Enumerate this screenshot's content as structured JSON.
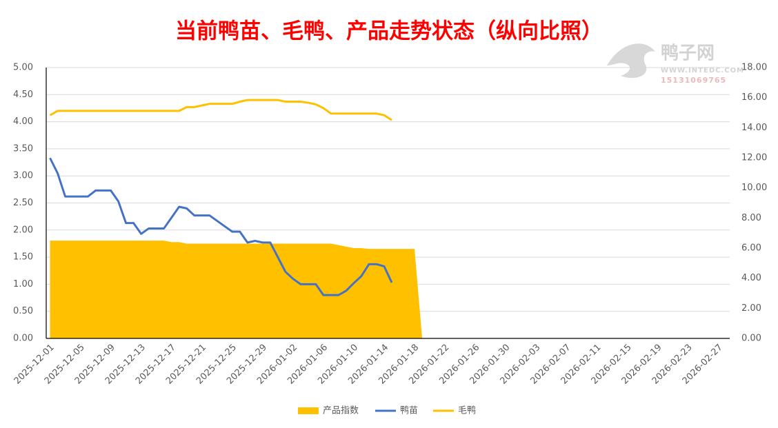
{
  "chart_data": {
    "type": "combo",
    "title": "当前鸭苗、毛鸭、产品走势状态（纵向比照）",
    "watermark": {
      "name": "鸭子网",
      "site": "WWW.INTEDC.COM",
      "phone": "15131069765"
    },
    "categories": [
      "2025-12-01",
      null,
      null,
      null,
      "2025-12-05",
      null,
      null,
      null,
      "2025-12-09",
      null,
      null,
      null,
      "2025-12-13",
      null,
      null,
      null,
      "2025-12-17",
      null,
      null,
      null,
      "2025-12-21",
      null,
      null,
      null,
      "2025-12-25",
      null,
      null,
      null,
      "2025-12-29",
      null,
      null,
      null,
      "2026-01-02",
      null,
      null,
      null,
      "2026-01-06",
      null,
      null,
      null,
      "2026-01-10",
      null,
      null,
      null,
      "2026-01-14",
      null,
      null,
      null,
      "2026-01-18",
      null,
      null,
      null,
      "2026-01-22",
      null,
      null,
      null,
      "2026-01-26",
      null,
      null,
      null,
      "2026-01-30",
      null,
      null,
      null,
      "2026-02-03",
      null,
      null,
      null,
      "2026-02-07",
      null,
      null,
      null,
      "2026-02-11",
      null,
      null,
      null,
      "2026-02-15",
      null,
      null,
      null,
      "2026-02-19",
      null,
      null,
      null,
      "2026-02-23",
      null,
      null,
      null,
      "2026-02-27",
      null
    ],
    "series": [
      {
        "name": "产品指数",
        "kind": "area",
        "axis": "y2",
        "color": "#ffc000",
        "values": [
          6.5,
          6.5,
          6.5,
          6.5,
          6.5,
          6.5,
          6.5,
          6.5,
          6.5,
          6.5,
          6.5,
          6.5,
          6.5,
          6.5,
          6.5,
          6.5,
          6.4,
          6.4,
          6.3,
          6.3,
          6.3,
          6.3,
          6.3,
          6.3,
          6.3,
          6.3,
          6.3,
          6.3,
          6.3,
          6.3,
          6.3,
          6.3,
          6.3,
          6.3,
          6.3,
          6.3,
          6.3,
          6.3,
          6.2,
          6.1,
          6.0,
          6.0,
          5.95,
          5.95,
          5.95,
          5.95,
          5.95,
          5.95,
          5.95,
          0,
          null,
          null,
          null,
          null,
          null,
          null,
          null,
          null,
          null,
          null,
          null,
          null,
          null,
          null,
          null,
          null,
          null,
          null,
          null,
          null,
          null,
          null,
          null,
          null,
          null,
          null,
          null,
          null,
          null,
          null,
          null,
          null,
          null,
          null,
          null,
          null,
          null,
          null,
          null,
          null
        ]
      },
      {
        "name": "鸭苗",
        "kind": "line",
        "color": "#4472c4",
        "values": [
          3.33,
          3.05,
          2.62,
          2.62,
          2.62,
          2.62,
          2.73,
          2.73,
          2.73,
          2.53,
          2.13,
          2.13,
          1.93,
          2.03,
          2.03,
          2.03,
          2.23,
          2.43,
          2.4,
          2.27,
          2.27,
          2.27,
          2.17,
          2.07,
          1.97,
          1.97,
          1.77,
          1.8,
          1.77,
          1.77,
          1.5,
          1.23,
          1.1,
          1.0,
          1.0,
          1.0,
          0.8,
          0.8,
          0.8,
          0.88,
          1.02,
          1.15,
          1.37,
          1.37,
          1.33,
          1.03,
          null,
          null,
          null,
          null,
          null,
          null,
          null,
          null,
          null,
          null,
          null,
          null,
          null,
          null,
          null,
          null,
          null,
          null,
          null,
          null,
          null,
          null,
          null,
          null,
          null,
          null,
          null,
          null,
          null,
          null,
          null,
          null,
          null,
          null,
          null,
          null,
          null,
          null,
          null,
          null,
          null,
          null,
          null,
          null
        ]
      },
      {
        "name": "毛鸭",
        "kind": "line",
        "color": "#ffc000",
        "values": [
          4.12,
          4.2,
          4.2,
          4.2,
          4.2,
          4.2,
          4.2,
          4.2,
          4.2,
          4.2,
          4.2,
          4.2,
          4.2,
          4.2,
          4.2,
          4.2,
          4.2,
          4.2,
          4.27,
          4.27,
          4.3,
          4.33,
          4.33,
          4.33,
          4.33,
          4.37,
          4.4,
          4.4,
          4.4,
          4.4,
          4.4,
          4.37,
          4.37,
          4.37,
          4.35,
          4.32,
          4.25,
          4.15,
          4.15,
          4.15,
          4.15,
          4.15,
          4.15,
          4.15,
          4.12,
          4.03,
          null,
          null,
          null,
          null,
          null,
          null,
          null,
          null,
          null,
          null,
          null,
          null,
          null,
          null,
          null,
          null,
          null,
          null,
          null,
          null,
          null,
          null,
          null,
          null,
          null,
          null,
          null,
          null,
          null,
          null,
          null,
          null,
          null,
          null,
          null,
          null,
          null,
          null,
          null,
          null,
          null,
          null,
          null,
          null
        ]
      }
    ],
    "ylim": [
      0,
      5
    ],
    "yticks": [
      {
        "value": 0,
        "label": "0.00"
      },
      {
        "value": 0.5,
        "label": "0.50"
      },
      {
        "value": 1,
        "label": "1.00"
      },
      {
        "value": 1.5,
        "label": "1.50"
      },
      {
        "value": 2,
        "label": "2.00"
      },
      {
        "value": 2.5,
        "label": "2.50"
      },
      {
        "value": 3,
        "label": "3.00"
      },
      {
        "value": 3.5,
        "label": "3.50"
      },
      {
        "value": 4,
        "label": "4.00"
      },
      {
        "value": 4.5,
        "label": "4.50"
      },
      {
        "value": 5,
        "label": "5.00"
      }
    ],
    "y2lim": [
      0,
      18
    ],
    "y2ticks": [
      {
        "value": 0,
        "label": "0.00"
      },
      {
        "value": 2,
        "label": "2.00"
      },
      {
        "value": 4,
        "label": "4.00"
      },
      {
        "value": 6,
        "label": "6.00"
      },
      {
        "value": 8,
        "label": "8.00"
      },
      {
        "value": 10,
        "label": "10.00"
      },
      {
        "value": 12,
        "label": "12.00"
      },
      {
        "value": 14,
        "label": "14.00"
      },
      {
        "value": 16,
        "label": "16.00"
      },
      {
        "value": 18,
        "label": "18.00"
      }
    ],
    "grid": true,
    "legend": "bottom"
  }
}
